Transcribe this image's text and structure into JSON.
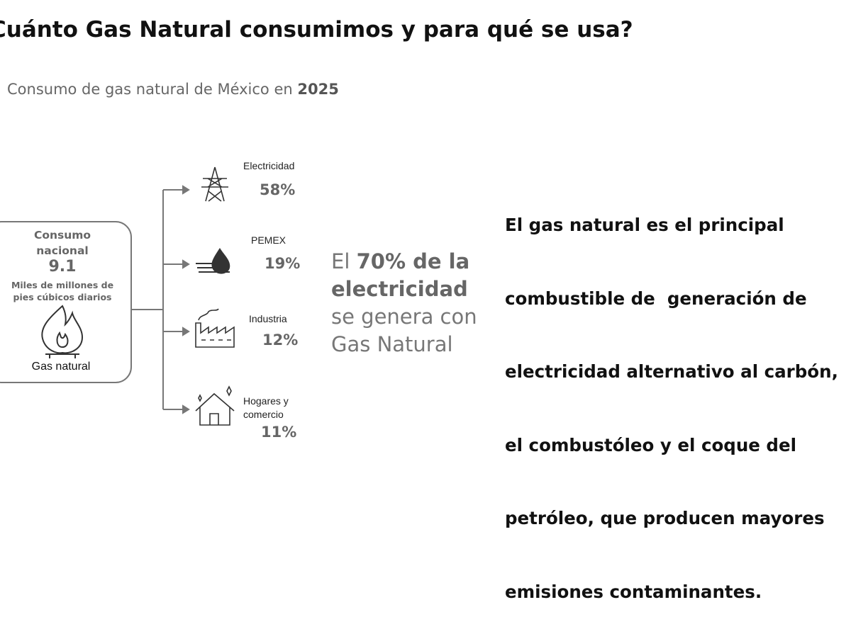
{
  "header": {
    "title": "Cuánto Gas Natural consumimos y para qué se usa?",
    "subtitle": "Consumo de gas natural de México en ",
    "subtitle_year": "2025"
  },
  "source_box": {
    "label": "Consumo nacional",
    "value": "9.1",
    "unit": "Miles de millones de pies cúbicos diarios",
    "caption": "Gas natural"
  },
  "uses": [
    {
      "label": "Electricidad",
      "share": "58%"
    },
    {
      "label": "PEMEX",
      "share": "19%"
    },
    {
      "label": "Industria",
      "share": "12%"
    },
    {
      "label": "Hogares y comercio",
      "share": "11%"
    }
  ],
  "middle_text": {
    "lead": "El ",
    "highlight_1": "70% de la",
    "highlight_2": "electricidad",
    "line_3": "se genera con",
    "line_4": "Gas Natural"
  },
  "right_text": {
    "lines": [
      "El gas natural es el principal",
      "combustible de  generación de",
      "electricidad alternativo al carbón,",
      "el combustóleo y el coque del",
      "petróleo, que producen mayores",
      "emisiones contaminantes."
    ]
  }
}
